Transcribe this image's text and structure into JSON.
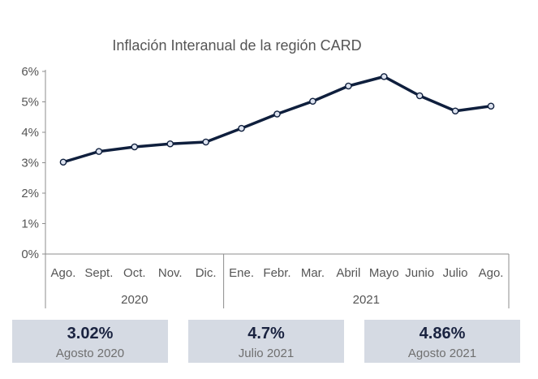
{
  "chart_data": {
    "type": "line",
    "title": "Inflación Interanual de la región CARD",
    "xlabel": "",
    "ylabel": "",
    "categories": [
      "Ago.",
      "Sept.",
      "Oct.",
      "Nov.",
      "Dic.",
      "Ene.",
      "Febr.",
      "Mar.",
      "Abril",
      "Mayo",
      "Junio",
      "Julio",
      "Ago."
    ],
    "year_groups": [
      {
        "label": "2020",
        "count": 5
      },
      {
        "label": "2021",
        "count": 8
      }
    ],
    "series": [
      {
        "values": [
          3.02,
          3.37,
          3.52,
          3.62,
          3.68,
          4.13,
          4.6,
          5.02,
          5.52,
          5.83,
          5.2,
          4.7,
          4.86
        ]
      }
    ],
    "y_ticks": [
      "0%",
      "1%",
      "2%",
      "3%",
      "4%",
      "5%",
      "6%"
    ],
    "ylim": [
      0,
      6
    ],
    "grid": false,
    "legend": "none",
    "line_color": "#0f1f3d",
    "marker_fill": "#dde3f0"
  },
  "cards": [
    {
      "value": "3.02%",
      "label": "Agosto 2020"
    },
    {
      "value": "4.7%",
      "label": "Julio 2021"
    },
    {
      "value": "4.86%",
      "label": "Agosto 2021"
    }
  ]
}
